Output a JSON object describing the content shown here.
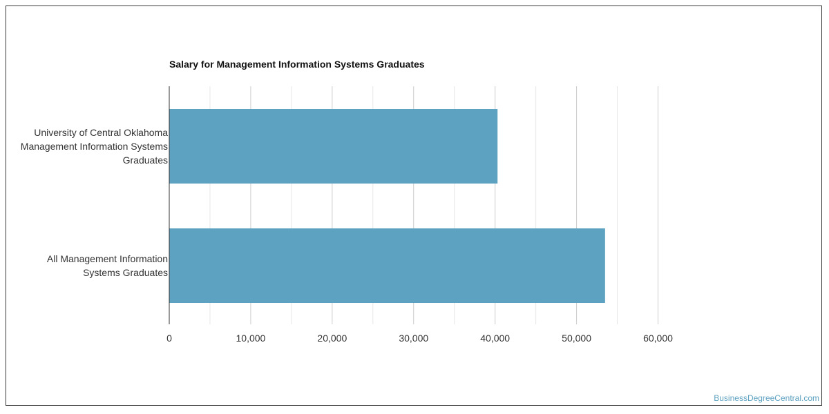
{
  "chart_data": {
    "type": "bar",
    "orientation": "horizontal",
    "title": "Salary for Management Information Systems Graduates",
    "categories": [
      [
        "University of Central Oklahoma",
        "Management Information Systems",
        "Graduates"
      ],
      [
        "All Management Information",
        "Systems Graduates"
      ]
    ],
    "values": [
      40300,
      53500
    ],
    "xlim": [
      0,
      60000
    ],
    "x_ticks": [
      "0",
      "10,000",
      "20,000",
      "30,000",
      "40,000",
      "50,000",
      "60,000"
    ],
    "grid": true,
    "bar_color": "#5ea2c1"
  },
  "watermark": "BusinessDegreeCentral.com"
}
